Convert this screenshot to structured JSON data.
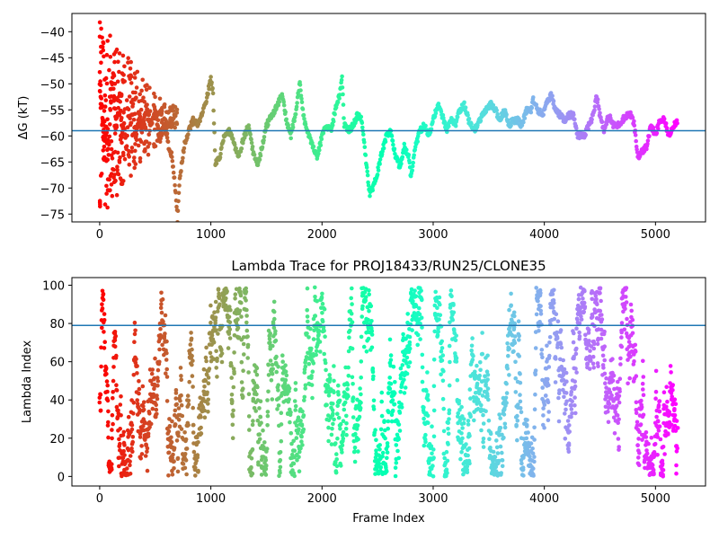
{
  "chart_data": [
    {
      "type": "scatter",
      "title": "",
      "xlabel": "",
      "ylabel": "ΔG (kT)",
      "xlim": [
        -250,
        5450
      ],
      "ylim": [
        -76.5,
        -36.5
      ],
      "xticks": [
        0,
        1000,
        2000,
        3000,
        4000,
        5000
      ],
      "yticks": [
        -75,
        -70,
        -65,
        -60,
        -55,
        -50,
        -45,
        -40
      ],
      "hline": -59,
      "hline_color": "#1f77b4",
      "colormap": "rainbow",
      "grid": false,
      "path_points": [
        [
          0,
          -50
        ],
        [
          20,
          -55
        ],
        [
          40,
          -62
        ],
        [
          60,
          -58
        ],
        [
          80,
          -64
        ],
        [
          100,
          -53
        ],
        [
          120,
          -48
        ],
        [
          140,
          -60
        ],
        [
          160,
          -56
        ],
        [
          180,
          -52
        ],
        [
          200,
          -60
        ],
        [
          220,
          -57
        ],
        [
          240,
          -63
        ],
        [
          260,
          -55
        ],
        [
          280,
          -58
        ],
        [
          300,
          -54
        ],
        [
          320,
          -61
        ],
        [
          350,
          -56
        ],
        [
          380,
          -59
        ],
        [
          420,
          -54
        ],
        [
          460,
          -58
        ],
        [
          500,
          -55
        ],
        [
          540,
          -61
        ],
        [
          580,
          -57
        ],
        [
          620,
          -62
        ],
        [
          650,
          -64
        ],
        [
          680,
          -70
        ],
        [
          700,
          -76
        ],
        [
          720,
          -68
        ],
        [
          760,
          -62
        ],
        [
          800,
          -59
        ],
        [
          840,
          -57
        ],
        [
          880,
          -58
        ],
        [
          920,
          -56
        ],
        [
          960,
          -53
        ],
        [
          1000,
          -49
        ],
        [
          1020,
          -52
        ],
        [
          1040,
          -65
        ],
        [
          1080,
          -64
        ],
        [
          1120,
          -60
        ],
        [
          1160,
          -59
        ],
        [
          1200,
          -61
        ],
        [
          1250,
          -64
        ],
        [
          1300,
          -60
        ],
        [
          1340,
          -58
        ],
        [
          1380,
          -63
        ],
        [
          1420,
          -66
        ],
        [
          1460,
          -62
        ],
        [
          1500,
          -58
        ],
        [
          1550,
          -56
        ],
        [
          1600,
          -54
        ],
        [
          1640,
          -52
        ],
        [
          1680,
          -57
        ],
        [
          1720,
          -60
        ],
        [
          1760,
          -56
        ],
        [
          1800,
          -50
        ],
        [
          1840,
          -57
        ],
        [
          1880,
          -60
        ],
        [
          1920,
          -62
        ],
        [
          1960,
          -64
        ],
        [
          2000,
          -60
        ],
        [
          2040,
          -58
        ],
        [
          2080,
          -59
        ],
        [
          2120,
          -55
        ],
        [
          2160,
          -52
        ],
        [
          2180,
          -49
        ],
        [
          2200,
          -58
        ],
        [
          2240,
          -59
        ],
        [
          2280,
          -58
        ],
        [
          2320,
          -56
        ],
        [
          2360,
          -57
        ],
        [
          2400,
          -66
        ],
        [
          2430,
          -71
        ],
        [
          2460,
          -70
        ],
        [
          2500,
          -67
        ],
        [
          2540,
          -63
        ],
        [
          2580,
          -60
        ],
        [
          2620,
          -59
        ],
        [
          2660,
          -64
        ],
        [
          2700,
          -66
        ],
        [
          2740,
          -62
        ],
        [
          2780,
          -64
        ],
        [
          2800,
          -68
        ],
        [
          2840,
          -62
        ],
        [
          2880,
          -59
        ],
        [
          2920,
          -58
        ],
        [
          2960,
          -60
        ],
        [
          3000,
          -57
        ],
        [
          3040,
          -54
        ],
        [
          3080,
          -56
        ],
        [
          3120,
          -59
        ],
        [
          3160,
          -57
        ],
        [
          3200,
          -58
        ],
        [
          3240,
          -55
        ],
        [
          3280,
          -54
        ],
        [
          3320,
          -57
        ],
        [
          3360,
          -59
        ],
        [
          3400,
          -58
        ],
        [
          3440,
          -56
        ],
        [
          3480,
          -55
        ],
        [
          3520,
          -54
        ],
        [
          3560,
          -55
        ],
        [
          3600,
          -57
        ],
        [
          3640,
          -55
        ],
        [
          3680,
          -58
        ],
        [
          3720,
          -57
        ],
        [
          3760,
          -57
        ],
        [
          3800,
          -58
        ],
        [
          3840,
          -55
        ],
        [
          3880,
          -55
        ],
        [
          3900,
          -53
        ],
        [
          3940,
          -55
        ],
        [
          3980,
          -56
        ],
        [
          4020,
          -54
        ],
        [
          4060,
          -52
        ],
        [
          4100,
          -55
        ],
        [
          4140,
          -56
        ],
        [
          4180,
          -57
        ],
        [
          4220,
          -56
        ],
        [
          4260,
          -56
        ],
        [
          4300,
          -60
        ],
        [
          4360,
          -60
        ],
        [
          4400,
          -58
        ],
        [
          4440,
          -56
        ],
        [
          4470,
          -52
        ],
        [
          4500,
          -56
        ],
        [
          4540,
          -59
        ],
        [
          4580,
          -56
        ],
        [
          4620,
          -58
        ],
        [
          4660,
          -58
        ],
        [
          4700,
          -57
        ],
        [
          4740,
          -56
        ],
        [
          4780,
          -56
        ],
        [
          4810,
          -58
        ],
        [
          4840,
          -64
        ],
        [
          4880,
          -63
        ],
        [
          4920,
          -62
        ],
        [
          4960,
          -58
        ],
        [
          5000,
          -60
        ],
        [
          5040,
          -57
        ],
        [
          5080,
          -57
        ],
        [
          5120,
          -60
        ],
        [
          5160,
          -58
        ],
        [
          5200,
          -57
        ]
      ],
      "early_scatter": {
        "x_range": [
          0,
          700
        ],
        "y_range": [
          -76,
          -38
        ]
      }
    },
    {
      "type": "scatter",
      "title": "Lambda Trace for PROJ18433/RUN25/CLONE35",
      "xlabel": "Frame Index",
      "ylabel": "Lambda Index",
      "xlim": [
        -250,
        5450
      ],
      "ylim": [
        -5,
        104
      ],
      "xticks": [
        0,
        1000,
        2000,
        3000,
        4000,
        5000
      ],
      "yticks": [
        0,
        20,
        40,
        60,
        80,
        100
      ],
      "hline": 79,
      "hline_color": "#1f77b4",
      "colormap": "rainbow",
      "grid": false,
      "n_points": 5200,
      "value_range": [
        0,
        99
      ]
    }
  ]
}
